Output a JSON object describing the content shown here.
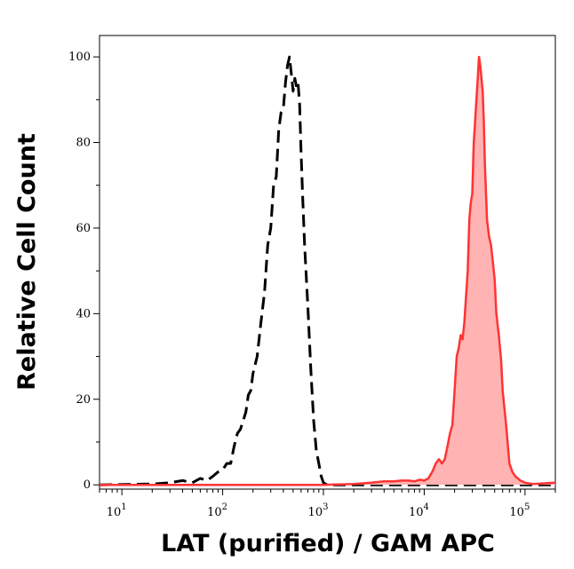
{
  "chart_data": {
    "type": "area",
    "xlabel": "LAT (purified) / GAM APC",
    "ylabel": "Relative Cell Count",
    "x_scale": "log",
    "xlim": [
      6,
      200000
    ],
    "ylim": [
      -1,
      105
    ],
    "x_ticks": [
      {
        "value": 10,
        "base": "10",
        "exp": "1"
      },
      {
        "value": 100,
        "base": "10",
        "exp": "2"
      },
      {
        "value": 1000,
        "base": "10",
        "exp": "3"
      },
      {
        "value": 10000,
        "base": "10",
        "exp": "4"
      },
      {
        "value": 100000,
        "base": "10",
        "exp": "5"
      }
    ],
    "y_ticks": [
      "0",
      "20",
      "40",
      "60",
      "80",
      "100"
    ],
    "grid": false,
    "series": [
      {
        "style": "dashed",
        "color": "#000000",
        "x": [
          6,
          20,
          30,
          40,
          50,
          60,
          70,
          80,
          90,
          100,
          110,
          120,
          130,
          140,
          150,
          160,
          170,
          180,
          190,
          200,
          220,
          240,
          260,
          280,
          300,
          320,
          340,
          360,
          380,
          400,
          420,
          440,
          460,
          480,
          500,
          520,
          540,
          560,
          580,
          600,
          620,
          650,
          700,
          750,
          800,
          850,
          900,
          950,
          1000,
          1050,
          1100,
          1200,
          2000,
          20000,
          50000,
          100000,
          200000
        ],
        "y": [
          0,
          0.2,
          0.5,
          1,
          0.5,
          1.5,
          1,
          2,
          3,
          3.5,
          5,
          5,
          9,
          12,
          13,
          15,
          17,
          21,
          22,
          26,
          30,
          38,
          45,
          56,
          60,
          70,
          72,
          83,
          87,
          88,
          94,
          98,
          100,
          96,
          92,
          95,
          93,
          94,
          89,
          78,
          68,
          56,
          42,
          27,
          15,
          8,
          5,
          2,
          0.5,
          0.2,
          0,
          0,
          0,
          0,
          0,
          0,
          0
        ]
      },
      {
        "style": "filled",
        "color": "#ff3333",
        "fill": "#ffb3b3",
        "x": [
          6,
          1000,
          2000,
          3000,
          4000,
          5000,
          6000,
          7000,
          8000,
          9000,
          10000,
          11000,
          12000,
          13000,
          14000,
          15000,
          16000,
          17000,
          18000,
          19000,
          20000,
          21000,
          22000,
          23000,
          24000,
          25000,
          26000,
          27000,
          28000,
          29000,
          30000,
          31000,
          32000,
          33000,
          34000,
          35000,
          36000,
          37000,
          38000,
          39000,
          40000,
          42000,
          44000,
          46000,
          48000,
          50000,
          52000,
          55000,
          58000,
          60000,
          65000,
          70000,
          75000,
          80000,
          90000,
          100000,
          120000,
          200000
        ],
        "y": [
          0,
          0,
          0.2,
          0.5,
          0.8,
          0.8,
          1,
          1,
          0.8,
          1.2,
          1,
          1.5,
          3,
          5,
          6,
          5,
          6,
          9,
          12,
          14,
          22,
          30,
          32,
          35,
          34,
          38,
          44,
          50,
          62,
          66,
          68,
          80,
          85,
          90,
          95,
          100,
          98,
          95,
          92,
          85,
          75,
          62,
          58,
          56,
          52,
          48,
          40,
          35,
          29,
          22,
          14,
          5,
          3,
          2,
          1,
          0.5,
          0.2,
          0.5
        ]
      }
    ]
  }
}
